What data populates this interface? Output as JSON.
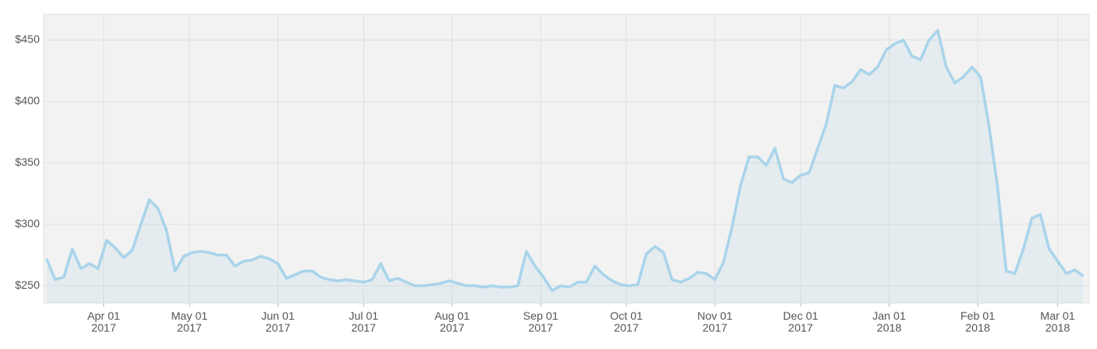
{
  "chart_data": {
    "type": "area",
    "x": [
      "2017-03-12",
      "2017-03-15",
      "2017-03-18",
      "2017-03-21",
      "2017-03-24",
      "2017-03-27",
      "2017-03-30",
      "2017-04-02",
      "2017-04-05",
      "2017-04-08",
      "2017-04-11",
      "2017-04-14",
      "2017-04-17",
      "2017-04-20",
      "2017-04-23",
      "2017-04-26",
      "2017-04-29",
      "2017-05-02",
      "2017-05-05",
      "2017-05-08",
      "2017-05-11",
      "2017-05-14",
      "2017-05-17",
      "2017-05-20",
      "2017-05-23",
      "2017-05-26",
      "2017-05-29",
      "2017-06-01",
      "2017-06-04",
      "2017-06-07",
      "2017-06-10",
      "2017-06-13",
      "2017-06-16",
      "2017-06-19",
      "2017-06-22",
      "2017-06-25",
      "2017-06-28",
      "2017-07-01",
      "2017-07-04",
      "2017-07-07",
      "2017-07-10",
      "2017-07-13",
      "2017-07-16",
      "2017-07-19",
      "2017-07-22",
      "2017-07-25",
      "2017-07-28",
      "2017-07-31",
      "2017-08-03",
      "2017-08-06",
      "2017-08-09",
      "2017-08-12",
      "2017-08-15",
      "2017-08-18",
      "2017-08-21",
      "2017-08-24",
      "2017-08-27",
      "2017-08-30",
      "2017-09-02",
      "2017-09-05",
      "2017-09-08",
      "2017-09-11",
      "2017-09-14",
      "2017-09-17",
      "2017-09-20",
      "2017-09-23",
      "2017-09-26",
      "2017-09-29",
      "2017-10-02",
      "2017-10-05",
      "2017-10-08",
      "2017-10-11",
      "2017-10-14",
      "2017-10-17",
      "2017-10-20",
      "2017-10-23",
      "2017-10-26",
      "2017-10-29",
      "2017-11-01",
      "2017-11-04",
      "2017-11-07",
      "2017-11-10",
      "2017-11-13",
      "2017-11-16",
      "2017-11-19",
      "2017-11-22",
      "2017-11-25",
      "2017-11-28",
      "2017-12-01",
      "2017-12-04",
      "2017-12-07",
      "2017-12-10",
      "2017-12-13",
      "2017-12-16",
      "2017-12-19",
      "2017-12-22",
      "2017-12-25",
      "2017-12-28",
      "2017-12-31",
      "2018-01-03",
      "2018-01-06",
      "2018-01-09",
      "2018-01-12",
      "2018-01-15",
      "2018-01-18",
      "2018-01-21",
      "2018-01-24",
      "2018-01-27",
      "2018-01-30",
      "2018-02-02",
      "2018-02-05",
      "2018-02-08",
      "2018-02-11",
      "2018-02-14",
      "2018-02-17",
      "2018-02-20",
      "2018-02-23",
      "2018-02-26",
      "2018-03-01",
      "2018-03-04",
      "2018-03-07",
      "2018-03-10"
    ],
    "values": [
      272,
      255,
      257,
      280,
      264,
      268,
      264,
      287,
      281,
      273,
      279,
      300,
      320,
      313,
      295,
      262,
      274,
      277,
      278,
      277,
      275,
      275,
      266,
      270,
      271,
      274,
      272,
      268,
      256,
      259,
      262,
      262,
      257,
      255,
      254,
      255,
      254,
      253,
      255,
      268,
      254,
      256,
      253,
      250,
      250,
      251,
      252,
      254,
      252,
      250,
      250,
      249,
      250,
      249,
      249,
      250,
      278,
      266,
      257,
      246,
      250,
      249,
      253,
      253,
      266,
      259,
      254,
      251,
      250,
      251,
      276,
      282,
      277,
      255,
      253,
      256,
      261,
      260,
      255,
      269,
      298,
      332,
      355,
      355,
      348,
      362,
      337,
      334,
      340,
      342,
      362,
      382,
      413,
      411,
      416,
      426,
      422,
      428,
      442,
      447,
      450,
      437,
      434,
      450,
      458,
      428,
      415,
      420,
      428,
      420,
      380,
      330,
      262,
      260,
      280,
      305,
      308,
      280,
      270,
      260,
      263,
      258
    ],
    "color": "#a9d4ea",
    "xlim": [
      "2017-03-11",
      "2018-03-12"
    ],
    "xticks": [
      {
        "value": "2017-04-01",
        "label": "Apr 01 2017"
      },
      {
        "value": "2017-05-01",
        "label": "May 01 2017"
      },
      {
        "value": "2017-06-01",
        "label": "Jun 01 2017"
      },
      {
        "value": "2017-07-01",
        "label": "Jul 01 2017"
      },
      {
        "value": "2017-08-01",
        "label": "Aug 01 2017"
      },
      {
        "value": "2017-09-01",
        "label": "Sep 01 2017"
      },
      {
        "value": "2017-10-01",
        "label": "Oct 01 2017"
      },
      {
        "value": "2017-11-01",
        "label": "Nov 01 2017"
      },
      {
        "value": "2017-12-01",
        "label": "Dec 01 2017"
      },
      {
        "value": "2018-01-01",
        "label": "Jan 01 2018"
      },
      {
        "value": "2018-02-01",
        "label": "Feb 01 2018"
      },
      {
        "value": "2018-03-01",
        "label": "Mar 01 2018"
      }
    ],
    "ylim": [
      236,
      471
    ],
    "yticks": [
      {
        "value": 250,
        "label": "$250"
      },
      {
        "value": 300,
        "label": "$300"
      },
      {
        "value": 350,
        "label": "$350"
      },
      {
        "value": 400,
        "label": "$400"
      },
      {
        "value": 450,
        "label": "$450"
      }
    ],
    "grid": true
  }
}
